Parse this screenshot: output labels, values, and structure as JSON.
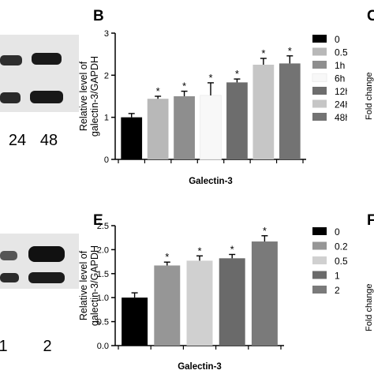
{
  "panel_labels": {
    "B": "B",
    "C": "C",
    "E": "E",
    "F": "F"
  },
  "left_blot_top": {
    "lane_labels": [
      "24",
      "48"
    ]
  },
  "left_blot_bottom": {
    "lane_labels": [
      "1",
      "2"
    ]
  },
  "right_edge_c": {
    "ylabel_fragment": "Fold change"
  },
  "right_edge_f": {
    "ylabel_fragment": "Fold change"
  },
  "chart_data": [
    {
      "id": "B",
      "type": "bar",
      "title": "",
      "xlabel": "Galectin-3",
      "ylabel": "Relative level of galectin-3/GAPDH",
      "ylabel_lines": [
        "Relative level of",
        "galectin-3/GAPDH"
      ],
      "ylim": [
        0,
        3
      ],
      "yticks": [
        "0",
        "1",
        "2",
        "3"
      ],
      "grid": false,
      "legend": "right",
      "significance_marker": "*",
      "series": [
        {
          "name": "0",
          "value": 1.0,
          "error": 0.09,
          "significant": false,
          "color": "#000000"
        },
        {
          "name": "0.5h",
          "value": 1.44,
          "error": 0.06,
          "significant": true,
          "color": "#b8b8b8"
        },
        {
          "name": "1h",
          "value": 1.5,
          "error": 0.12,
          "significant": true,
          "color": "#8e8e8e"
        },
        {
          "name": "6h",
          "value": 1.52,
          "error": 0.3,
          "significant": true,
          "color": "#f8f8f8"
        },
        {
          "name": "12h",
          "value": 1.83,
          "error": 0.08,
          "significant": true,
          "color": "#6d6d6d"
        },
        {
          "name": "24h",
          "value": 2.25,
          "error": 0.15,
          "significant": true,
          "color": "#c6c6c6"
        },
        {
          "name": "48h",
          "value": 2.28,
          "error": 0.18,
          "significant": true,
          "color": "#737373"
        }
      ]
    },
    {
      "id": "E",
      "type": "bar",
      "title": "",
      "xlabel": "Galectin-3",
      "ylabel": "Relative level of galectin-3/GAPDH",
      "ylabel_lines": [
        "Relative level of",
        "galectin-3/GAPDH"
      ],
      "ylim": [
        0,
        2.5
      ],
      "yticks": [
        "0.0",
        "0.5",
        "1.0",
        "1.5",
        "2.0",
        "2.5"
      ],
      "grid": false,
      "legend": "right",
      "significance_marker": "*",
      "series": [
        {
          "name": "0",
          "value": 1.0,
          "error": 0.1,
          "significant": false,
          "color": "#000000"
        },
        {
          "name": "0.25",
          "value": 1.67,
          "error": 0.07,
          "significant": true,
          "color": "#969696"
        },
        {
          "name": "0.5",
          "value": 1.77,
          "error": 0.1,
          "significant": true,
          "color": "#d0d0d0"
        },
        {
          "name": "1",
          "value": 1.82,
          "error": 0.08,
          "significant": true,
          "color": "#6a6a6a"
        },
        {
          "name": "2",
          "value": 2.17,
          "error": 0.12,
          "significant": true,
          "color": "#7a7a7a"
        }
      ]
    }
  ]
}
